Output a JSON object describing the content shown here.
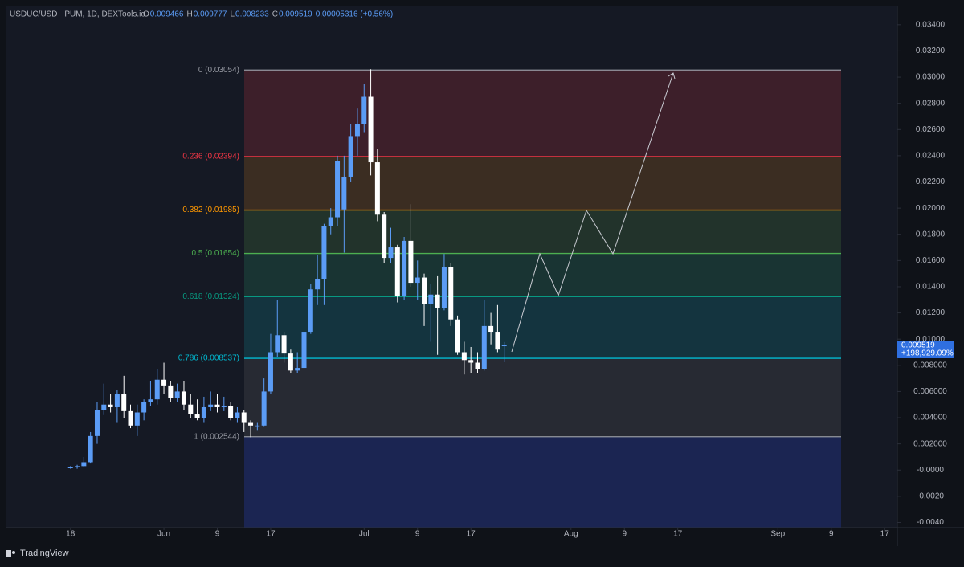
{
  "header": {
    "symbol": "USDUC/USD - PUM, 1D, DEXTools.io",
    "fields": [
      {
        "key": "O",
        "value": "0.009466"
      },
      {
        "key": "H",
        "value": "0.009777"
      },
      {
        "key": "L",
        "value": "0.008233"
      },
      {
        "key": "C",
        "value": "0.009519"
      }
    ],
    "change": "0.00005316 (+0.56%)"
  },
  "price_badge": {
    "price": "0.009519",
    "change": "+198,929.09%"
  },
  "footer": {
    "brand": "TradingView"
  },
  "chart_data": {
    "type": "candlestick",
    "x": [
      0,
      1,
      2,
      3,
      4,
      5,
      6,
      7,
      8,
      9,
      10,
      11,
      12,
      13,
      14,
      15,
      16,
      17,
      18,
      19,
      20,
      21,
      22,
      23,
      24,
      25,
      26,
      27,
      28,
      29,
      30,
      31,
      32,
      33,
      34,
      35,
      36,
      37,
      38,
      39,
      40,
      41,
      42,
      43,
      44,
      45,
      46,
      47,
      48,
      49,
      50,
      51,
      52,
      53,
      54,
      55,
      56,
      57,
      58,
      59,
      60,
      61,
      62,
      63,
      64,
      65
    ],
    "open": [
      0.0002,
      0.0002,
      0.0003,
      0.0006,
      0.0026,
      0.0046,
      0.005,
      0.0048,
      0.0058,
      0.0045,
      0.0034,
      0.0044,
      0.0052,
      0.0054,
      0.0069,
      0.0064,
      0.0055,
      0.006,
      0.005,
      0.0043,
      0.004,
      0.0048,
      0.005,
      0.0048,
      0.0049,
      0.004,
      0.0044,
      0.0036,
      0.0033,
      0.0034,
      0.006,
      0.009,
      0.0103,
      0.0089,
      0.0076,
      0.0078,
      0.0105,
      0.0138,
      0.0146,
      0.0186,
      0.0193,
      0.0199,
      0.0224,
      0.0255,
      0.0264,
      0.0285,
      0.0235,
      0.0195,
      0.0162,
      0.017,
      0.0133,
      0.0175,
      0.0143,
      0.0147,
      0.0127,
      0.0134,
      0.0124,
      0.0155,
      0.0115,
      0.009,
      0.0084,
      0.0082,
      0.0077,
      0.011,
      0.0105,
      0.009466
    ],
    "high": [
      0.0003,
      0.0004,
      0.001,
      0.0029,
      0.0052,
      0.0066,
      0.0058,
      0.0061,
      0.0072,
      0.005,
      0.005,
      0.0054,
      0.0068,
      0.0077,
      0.0082,
      0.0068,
      0.0066,
      0.0068,
      0.0058,
      0.0054,
      0.0056,
      0.006,
      0.0058,
      0.0056,
      0.0052,
      0.0048,
      0.0046,
      0.0038,
      0.0036,
      0.007,
      0.0104,
      0.013,
      0.0105,
      0.0092,
      0.009,
      0.011,
      0.0142,
      0.0164,
      0.0188,
      0.02,
      0.024,
      0.024,
      0.0264,
      0.0276,
      0.0295,
      0.0306,
      0.0245,
      0.0197,
      0.0185,
      0.0172,
      0.0178,
      0.0203,
      0.016,
      0.015,
      0.0142,
      0.0148,
      0.0165,
      0.0158,
      0.0118,
      0.0098,
      0.0094,
      0.009,
      0.013,
      0.012,
      0.0126,
      0.009777
    ],
    "low": [
      0.0001,
      0.0001,
      0.0002,
      0.0005,
      0.002,
      0.0042,
      0.0044,
      0.0036,
      0.004,
      0.0032,
      0.0026,
      0.0038,
      0.0049,
      0.005,
      0.0058,
      0.0052,
      0.0052,
      0.0046,
      0.004,
      0.0038,
      0.0036,
      0.0045,
      0.0044,
      0.0045,
      0.0038,
      0.0036,
      0.0029,
      0.0025,
      0.003,
      0.0033,
      0.0058,
      0.0086,
      0.0082,
      0.0074,
      0.0074,
      0.0077,
      0.0104,
      0.0126,
      0.0126,
      0.018,
      0.0186,
      0.0166,
      0.022,
      0.024,
      0.0258,
      0.0225,
      0.019,
      0.0158,
      0.0158,
      0.0128,
      0.013,
      0.014,
      0.013,
      0.011,
      0.0098,
      0.0088,
      0.0122,
      0.011,
      0.0088,
      0.0073,
      0.0074,
      0.0074,
      0.0076,
      0.0096,
      0.009,
      0.008233
    ],
    "close": [
      0.0002,
      0.0003,
      0.0006,
      0.0026,
      0.0046,
      0.005,
      0.0048,
      0.0058,
      0.0045,
      0.0034,
      0.0044,
      0.0052,
      0.0054,
      0.0069,
      0.0064,
      0.0055,
      0.006,
      0.005,
      0.0043,
      0.004,
      0.0048,
      0.005,
      0.0048,
      0.0049,
      0.004,
      0.0044,
      0.0036,
      0.0034,
      0.0034,
      0.006,
      0.009,
      0.0103,
      0.0089,
      0.0076,
      0.0078,
      0.0105,
      0.0138,
      0.0146,
      0.0186,
      0.0193,
      0.0236,
      0.0224,
      0.0255,
      0.0264,
      0.0285,
      0.0235,
      0.0195,
      0.0162,
      0.017,
      0.0133,
      0.0175,
      0.0143,
      0.0147,
      0.0127,
      0.0134,
      0.0124,
      0.0155,
      0.0115,
      0.009,
      0.0084,
      0.0082,
      0.0077,
      0.011,
      0.0105,
      0.0092,
      0.009519
    ],
    "up_color": "#5b9cf6",
    "down_color": "#ffffff",
    "xlim": [
      -9.6,
      123.9
    ],
    "xticks": [
      {
        "value": 0,
        "label": "18"
      },
      {
        "value": 14,
        "label": "Jun"
      },
      {
        "value": 22,
        "label": "9"
      },
      {
        "value": 30,
        "label": "17"
      },
      {
        "value": 44,
        "label": "Jul"
      },
      {
        "value": 52,
        "label": "9"
      },
      {
        "value": 60,
        "label": "17"
      },
      {
        "value": 75,
        "label": "Aug"
      },
      {
        "value": 83,
        "label": "9"
      },
      {
        "value": 91,
        "label": "17"
      },
      {
        "value": 106,
        "label": "Sep"
      },
      {
        "value": 114,
        "label": "9"
      },
      {
        "value": 122,
        "label": "17"
      }
    ],
    "ylim": [
      -0.0044,
      0.0354
    ],
    "yticks": [
      {
        "value": 0.034,
        "label": "0.03400"
      },
      {
        "value": 0.032,
        "label": "0.03200"
      },
      {
        "value": 0.03,
        "label": "0.03000"
      },
      {
        "value": 0.028,
        "label": "0.02800"
      },
      {
        "value": 0.026,
        "label": "0.02600"
      },
      {
        "value": 0.024,
        "label": "0.02400"
      },
      {
        "value": 0.022,
        "label": "0.02200"
      },
      {
        "value": 0.02,
        "label": "0.02000"
      },
      {
        "value": 0.018,
        "label": "0.01800"
      },
      {
        "value": 0.016,
        "label": "0.01600"
      },
      {
        "value": 0.014,
        "label": "0.01400"
      },
      {
        "value": 0.012,
        "label": "0.01200"
      },
      {
        "value": 0.01,
        "label": "0.01000"
      },
      {
        "value": 0.008,
        "label": "0.008000"
      },
      {
        "value": 0.006,
        "label": "0.006000"
      },
      {
        "value": 0.004,
        "label": "0.004000"
      },
      {
        "value": 0.002,
        "label": "0.002000"
      },
      {
        "value": 0,
        "label": "-0.0000"
      },
      {
        "value": -0.002,
        "label": "-0.0020"
      },
      {
        "value": -0.004,
        "label": "-0.0040"
      }
    ],
    "fib_levels": [
      {
        "label": "0 (0.03054)",
        "price": 0.03054,
        "color": "#9598a1",
        "fill": "#3d1f2a"
      },
      {
        "label": "0.236 (0.02394)",
        "price": 0.02394,
        "color": "#f23645",
        "fill": "#3b2d22"
      },
      {
        "label": "0.382 (0.01985)",
        "price": 0.01985,
        "color": "#ff9800",
        "fill": "#22332b"
      },
      {
        "label": "0.5 (0.01654)",
        "price": 0.01654,
        "color": "#4caf50",
        "fill": "#193433"
      },
      {
        "label": "0.618 (0.01324)",
        "price": 0.01324,
        "color": "#089981",
        "fill": "#14343f"
      },
      {
        "label": "0.786 (0.008537)",
        "price": 0.008537,
        "color": "#00bcd4",
        "fill": "#272a33"
      },
      {
        "label": "1 (0.002544)",
        "price": 0.002544,
        "color": "#9598a1",
        "fill": "#1b2552"
      }
    ]
  }
}
